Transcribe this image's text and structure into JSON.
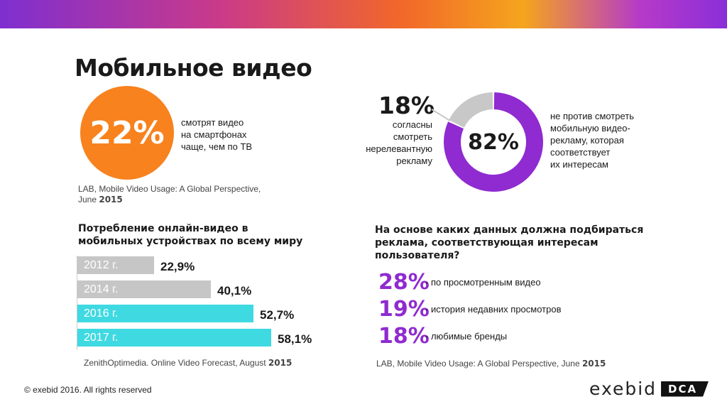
{
  "header": {
    "title": "Мобильное видео"
  },
  "smartphone_stat": {
    "value": "22%",
    "text_lines": [
      "смотрят видео",
      "на смартфонах",
      "чаще, чем по ТВ"
    ],
    "circle_color": "#f7821e",
    "source_lines": [
      "LAB, Mobile Video Usage: A Global Perspective,",
      "June "
    ],
    "source_year": "2015"
  },
  "ads": {
    "agree_value": "18%",
    "agree_lines": [
      "согласны",
      "смотреть",
      "нерелевантную",
      "рекламу"
    ],
    "main_value": "82%",
    "main_lines": [
      "не против смотреть",
      "мобильную видео-",
      "рекламу, которая",
      "соответствует",
      "их интересам"
    ]
  },
  "consumption": {
    "title_lines": [
      "Потребление онлайн-видео в",
      "мобильных устройствах по всему миру"
    ],
    "source": "ZenithOptimedia. Online Video Forecast,  August ",
    "source_year": "2015"
  },
  "ad_basis": {
    "title_lines": [
      "На основе каких данных должна подбираться",
      "реклама, соответствующая интересам",
      "пользователя?"
    ],
    "items": [
      {
        "value": "28%",
        "label": "- по просмотренным видео"
      },
      {
        "value": "19%",
        "label": "- история недавних просмотров"
      },
      {
        "value": "18%",
        "label": "- любимые бренды"
      }
    ],
    "source": "LAB, Mobile Video Usage: A Global Perspective, June ",
    "source_year": "2015"
  },
  "footer": {
    "copyright": "© exebid 2016. All rights reserved",
    "logo_word": "exebid",
    "logo_badge": "DCA"
  },
  "colors": {
    "accent_purple": "#8f2bd0",
    "bar_gray": "#c6c6c6",
    "bar_cyan": "#3fd9e2",
    "donut_gray": "#c8c8c8"
  },
  "chart_data": [
    {
      "type": "bar",
      "orientation": "horizontal",
      "categories": [
        "2012 г.",
        "2014 г.",
        "2016 г.",
        "2017 г."
      ],
      "values": [
        22.9,
        40.1,
        52.7,
        58.1
      ],
      "value_labels": [
        "22,9%",
        "40,1%",
        "52,7%",
        "58,1%"
      ],
      "colors": [
        "#c6c6c6",
        "#c6c6c6",
        "#3fd9e2",
        "#3fd9e2"
      ]
    },
    {
      "type": "pie",
      "style": "donut",
      "values": [
        82,
        18
      ],
      "value_labels": [
        "82%",
        "18%"
      ],
      "colors": [
        "#8f2bd0",
        "#c8c8c8"
      ]
    }
  ]
}
